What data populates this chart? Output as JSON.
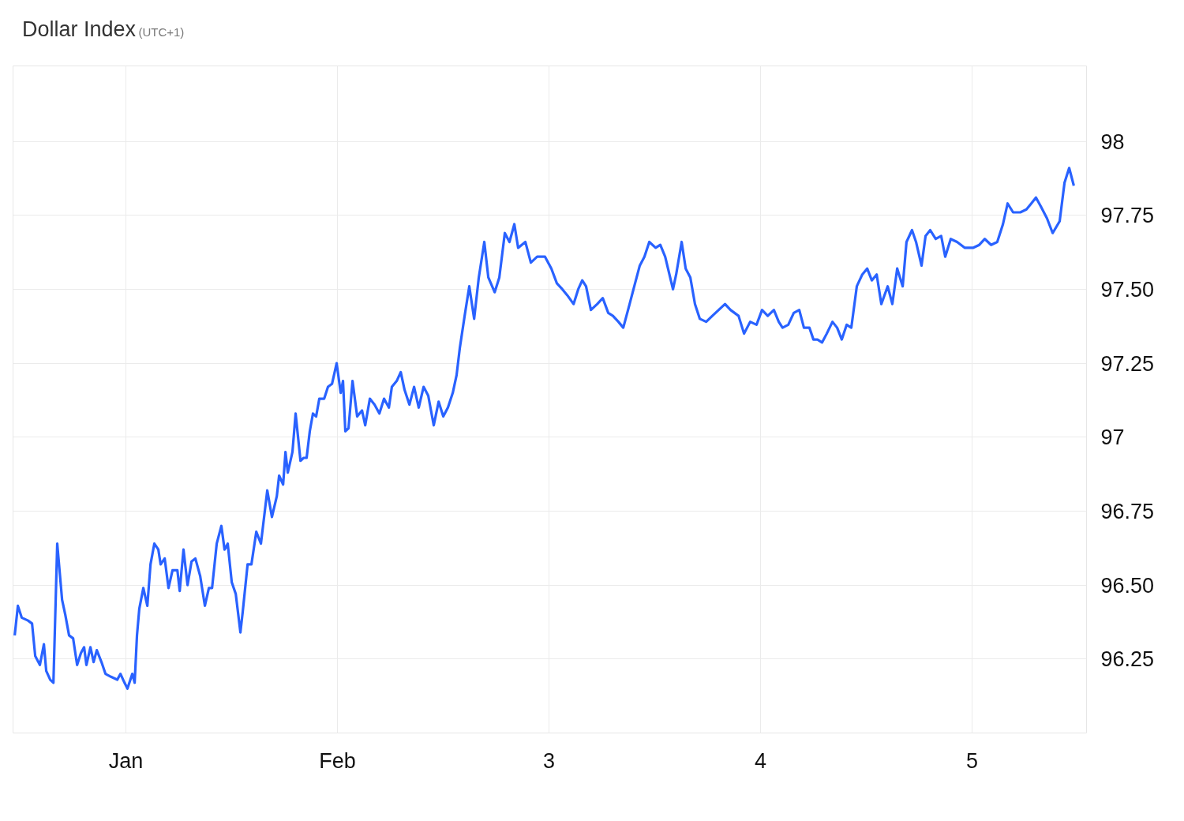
{
  "chart_data": {
    "type": "line",
    "title": "Dollar Index",
    "subtitle": "(UTC+1)",
    "x": [
      0.474,
      0.489,
      0.507,
      0.537,
      0.556,
      0.571,
      0.593,
      0.612,
      0.623,
      0.642,
      0.657,
      0.675,
      0.698,
      0.713,
      0.731,
      0.75,
      0.769,
      0.787,
      0.802,
      0.813,
      0.832,
      0.847,
      0.862,
      0.884,
      0.903,
      0.929,
      0.959,
      0.974,
      0.993,
      1.007,
      1.03,
      1.041,
      1.052,
      1.063,
      1.082,
      1.101,
      1.116,
      1.134,
      1.153,
      1.164,
      1.183,
      1.201,
      1.22,
      1.243,
      1.254,
      1.272,
      1.291,
      1.31,
      1.328,
      1.351,
      1.373,
      1.392,
      1.407,
      1.429,
      1.451,
      1.466,
      1.481,
      1.5,
      1.519,
      1.541,
      1.552,
      1.575,
      1.593,
      1.616,
      1.638,
      1.668,
      1.69,
      1.713,
      1.724,
      1.743,
      1.754,
      1.765,
      1.787,
      1.802,
      1.825,
      1.84,
      1.854,
      1.869,
      1.884,
      1.899,
      1.914,
      1.937,
      1.955,
      1.974,
      1.996,
      2.015,
      2.026,
      2.037,
      2.052,
      2.071,
      2.093,
      2.116,
      2.131,
      2.153,
      2.175,
      2.198,
      2.22,
      2.243,
      2.257,
      2.28,
      2.299,
      2.317,
      2.34,
      2.362,
      2.384,
      2.407,
      2.429,
      2.455,
      2.478,
      2.5,
      2.522,
      2.545,
      2.563,
      2.578,
      2.601,
      2.623,
      2.646,
      2.668,
      2.694,
      2.713,
      2.743,
      2.765,
      2.791,
      2.813,
      2.836,
      2.854,
      2.888,
      2.914,
      2.944,
      2.981,
      3.011,
      3.037,
      3.063,
      3.086,
      3.116,
      3.138,
      3.157,
      3.175,
      3.198,
      3.228,
      3.254,
      3.28,
      3.302,
      3.328,
      3.351,
      3.381,
      3.403,
      3.429,
      3.451,
      3.474,
      3.504,
      3.526,
      3.549,
      3.586,
      3.601,
      3.627,
      3.646,
      3.668,
      3.69,
      3.713,
      3.743,
      3.772,
      3.802,
      3.832,
      3.858,
      3.896,
      3.922,
      3.951,
      3.981,
      4.007,
      4.034,
      4.063,
      4.086,
      4.104,
      4.131,
      4.157,
      4.183,
      4.205,
      4.231,
      4.25,
      4.269,
      4.291,
      4.313,
      4.34,
      4.362,
      4.384,
      4.407,
      4.429,
      4.455,
      4.481,
      4.504,
      4.526,
      4.549,
      4.571,
      4.601,
      4.623,
      4.646,
      4.672,
      4.69,
      4.716,
      4.735,
      4.761,
      4.78,
      4.802,
      4.828,
      4.854,
      4.873,
      4.899,
      4.929,
      4.966,
      5.004,
      5.034,
      5.06,
      5.09,
      5.119,
      5.146,
      5.168,
      5.194,
      5.228,
      5.257,
      5.28,
      5.302,
      5.325,
      5.354,
      5.381,
      5.414,
      5.437,
      5.459,
      5.481
    ],
    "series": [
      {
        "color": "#2962ff",
        "values": [
          96.33,
          96.43,
          96.39,
          96.38,
          96.37,
          96.26,
          96.23,
          96.3,
          96.21,
          96.18,
          96.17,
          96.64,
          96.45,
          96.4,
          96.33,
          96.32,
          96.23,
          96.27,
          96.29,
          96.23,
          96.29,
          96.24,
          96.28,
          96.24,
          96.2,
          96.19,
          96.18,
          96.2,
          96.17,
          96.15,
          96.2,
          96.17,
          96.33,
          96.42,
          96.49,
          96.43,
          96.57,
          96.64,
          96.62,
          96.57,
          96.59,
          96.49,
          96.55,
          96.55,
          96.48,
          96.62,
          96.5,
          96.58,
          96.59,
          96.53,
          96.43,
          96.49,
          96.49,
          96.64,
          96.7,
          96.62,
          96.64,
          96.51,
          96.47,
          96.34,
          96.41,
          96.57,
          96.57,
          96.68,
          96.64,
          96.82,
          96.73,
          96.8,
          96.87,
          96.84,
          96.95,
          96.88,
          96.95,
          97.08,
          96.92,
          96.93,
          96.93,
          97.02,
          97.08,
          97.07,
          97.13,
          97.13,
          97.17,
          97.18,
          97.25,
          97.15,
          97.19,
          97.02,
          97.03,
          97.19,
          97.07,
          97.09,
          97.04,
          97.13,
          97.11,
          97.08,
          97.13,
          97.1,
          97.17,
          97.19,
          97.22,
          97.16,
          97.11,
          97.17,
          97.1,
          97.17,
          97.14,
          97.04,
          97.12,
          97.07,
          97.1,
          97.15,
          97.21,
          97.3,
          97.41,
          97.51,
          97.4,
          97.54,
          97.66,
          97.54,
          97.49,
          97.54,
          97.69,
          97.66,
          97.72,
          97.64,
          97.66,
          97.59,
          97.61,
          97.61,
          97.57,
          97.52,
          97.5,
          97.48,
          97.45,
          97.5,
          97.53,
          97.51,
          97.43,
          97.45,
          97.47,
          97.42,
          97.41,
          97.39,
          97.37,
          97.45,
          97.51,
          97.58,
          97.61,
          97.66,
          97.64,
          97.65,
          97.61,
          97.5,
          97.55,
          97.66,
          97.57,
          97.54,
          97.45,
          97.4,
          97.39,
          97.41,
          97.43,
          97.45,
          97.43,
          97.41,
          97.35,
          97.39,
          97.38,
          97.43,
          97.41,
          97.43,
          97.39,
          97.37,
          97.38,
          97.42,
          97.43,
          97.37,
          97.37,
          97.33,
          97.33,
          97.32,
          97.35,
          97.39,
          97.37,
          97.33,
          97.38,
          97.37,
          97.51,
          97.55,
          97.57,
          97.53,
          97.55,
          97.45,
          97.51,
          97.45,
          97.57,
          97.51,
          97.66,
          97.7,
          97.66,
          97.58,
          97.68,
          97.7,
          97.67,
          97.68,
          97.61,
          97.67,
          97.66,
          97.64,
          97.64,
          97.65,
          97.67,
          97.65,
          97.66,
          97.72,
          97.79,
          97.76,
          97.76,
          97.77,
          97.79,
          97.81,
          97.78,
          97.74,
          97.69,
          97.73,
          97.86,
          97.91,
          97.85
        ]
      }
    ],
    "xlim": [
      0.466,
      5.541
    ],
    "xticks": [
      {
        "value": 1,
        "label": "Jan"
      },
      {
        "value": 2,
        "label": "Feb"
      },
      3,
      4,
      5
    ],
    "ylim": [
      96.0,
      98.255
    ],
    "yticks": [
      {
        "value": 96.25,
        "label": "96.25"
      },
      {
        "value": 96.5,
        "label": "96.50"
      },
      {
        "value": 96.75,
        "label": "96.75"
      },
      97,
      {
        "value": 97.25,
        "label": "97.25"
      },
      {
        "value": 97.5,
        "label": "97.50"
      },
      {
        "value": 97.75,
        "label": "97.75"
      },
      98
    ],
    "grid": true,
    "line_style": "solid",
    "marker": "none"
  }
}
